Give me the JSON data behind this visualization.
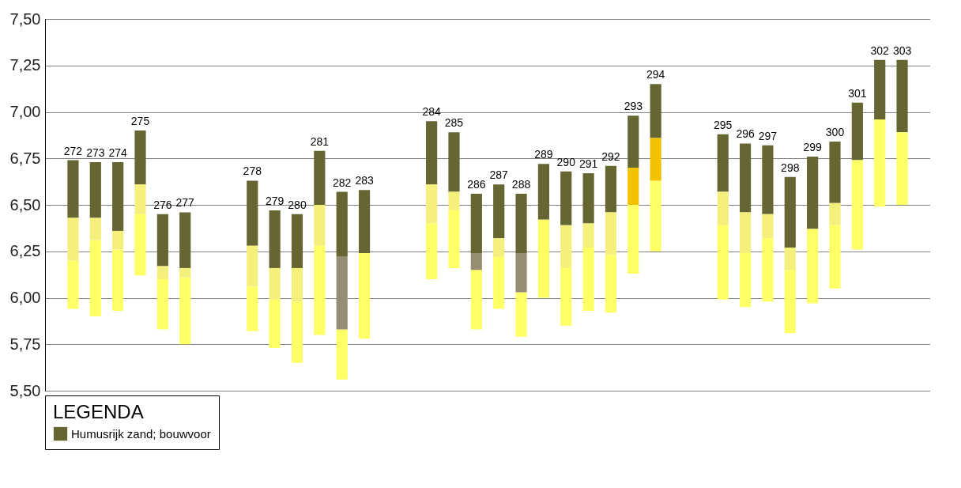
{
  "chart_data": {
    "type": "bar",
    "categories": [
      "272",
      "273",
      "274",
      "275",
      "276",
      "277",
      null,
      null,
      "278",
      "279",
      "280",
      "281",
      "282",
      "283",
      null,
      null,
      "284",
      "285",
      "286",
      "287",
      "288",
      "289",
      "290",
      "291",
      "292",
      "293",
      "294",
      null,
      null,
      "295",
      "296",
      "297",
      "298",
      "299",
      "300",
      "301",
      "302",
      "303"
    ],
    "series": [
      {
        "color": "#ffff66",
        "base": [
          5.94,
          5.9,
          5.93,
          6.12,
          5.83,
          5.75,
          null,
          null,
          5.82,
          5.73,
          5.65,
          5.8,
          5.56,
          5.78,
          null,
          null,
          6.1,
          6.16,
          5.83,
          5.94,
          5.79,
          6.0,
          5.85,
          5.93,
          5.92,
          6.13,
          6.25,
          null,
          null,
          5.99,
          5.95,
          5.98,
          5.81,
          5.97,
          6.05,
          6.26,
          6.49,
          6.5
        ],
        "values": [
          0.26,
          0.41,
          0.33,
          0.33,
          0.27,
          0.36,
          null,
          null,
          0.24,
          0.26,
          0.33,
          0.48,
          0.27,
          0.46,
          null,
          null,
          0.3,
          0.31,
          0.32,
          0.28,
          0.24,
          0.42,
          0.31,
          0.34,
          0.31,
          0.37,
          0.38,
          null,
          null,
          0.4,
          0.29,
          0.34,
          0.34,
          0.4,
          0.34,
          0.48,
          0.47,
          0.39
        ]
      },
      {
        "color": "#f5ef7c",
        "colors": [
          "#f5ef7c",
          "#f5ef7c",
          "#f5ef7c",
          "#f5ef7c",
          "#f5ef7c",
          "#f5ef7c",
          null,
          null,
          "#f5ef7c",
          "#f5ef7c",
          "#f5ef7c",
          "#f5ef7c",
          "#958e75",
          null,
          null,
          null,
          "#f5ef7c",
          "#f5ef7c",
          "#958e75",
          "#f5ef7c",
          "#958e75",
          null,
          "#f5ef7c",
          "#f5ef7c",
          "#f5ef7c",
          "#f2c200",
          "#f2c200",
          null,
          null,
          "#f5ef7c",
          "#f5ef7c",
          "#f5ef7c",
          "#f5ef7c",
          null,
          "#f5ef7c",
          null,
          null,
          null
        ],
        "base": [
          6.2,
          6.31,
          6.26,
          6.45,
          6.1,
          6.11,
          null,
          null,
          6.06,
          5.99,
          5.98,
          6.28,
          5.83,
          null,
          null,
          null,
          6.4,
          6.47,
          6.15,
          6.22,
          6.03,
          null,
          6.16,
          6.27,
          6.23,
          6.5,
          6.63,
          null,
          null,
          6.39,
          6.24,
          6.32,
          6.15,
          null,
          6.39,
          null,
          null,
          null
        ],
        "values": [
          0.23,
          0.12,
          0.1,
          0.16,
          0.07,
          0.05,
          null,
          null,
          0.22,
          0.17,
          0.18,
          0.22,
          0.39,
          null,
          null,
          null,
          0.21,
          0.1,
          0.09,
          0.1,
          0.21,
          null,
          0.23,
          0.13,
          0.23,
          0.2,
          0.23,
          null,
          null,
          0.18,
          0.22,
          0.13,
          0.12,
          null,
          0.12,
          null,
          null,
          null
        ]
      },
      {
        "name": "Humusrijk zand; bouwvoor",
        "color": "#666633",
        "base": [
          6.43,
          6.43,
          6.36,
          6.61,
          6.17,
          6.16,
          null,
          null,
          6.28,
          6.16,
          6.16,
          6.5,
          6.22,
          6.24,
          null,
          null,
          6.61,
          6.57,
          6.24,
          6.32,
          6.24,
          6.42,
          6.39,
          6.4,
          6.46,
          6.7,
          6.86,
          null,
          null,
          6.57,
          6.46,
          6.45,
          6.27,
          6.37,
          6.51,
          6.74,
          6.96,
          6.89
        ],
        "values": [
          0.31,
          0.3,
          0.37,
          0.29,
          0.28,
          0.3,
          null,
          null,
          0.35,
          0.31,
          0.29,
          0.29,
          0.35,
          0.34,
          null,
          null,
          0.34,
          0.32,
          0.32,
          0.29,
          0.32,
          0.3,
          0.29,
          0.27,
          0.25,
          0.28,
          0.29,
          null,
          null,
          0.31,
          0.37,
          0.37,
          0.38,
          0.39,
          0.33,
          0.31,
          0.32,
          0.39
        ]
      }
    ],
    "ylim": [
      5.5,
      7.5
    ],
    "yticks": [
      {
        "value": 5.5,
        "label": "5,50"
      },
      {
        "value": 5.75,
        "label": "5,75"
      },
      {
        "value": 6,
        "label": "6,00"
      },
      {
        "value": 6.25,
        "label": "6,25"
      },
      {
        "value": 6.5,
        "label": "6,50"
      },
      {
        "value": 6.75,
        "label": "6,75"
      },
      {
        "value": 7,
        "label": "7,00"
      },
      {
        "value": 7.25,
        "label": "7,25"
      },
      {
        "value": 7.5,
        "label": "7,50"
      }
    ],
    "grid": "y",
    "legend": "bottom",
    "legend_title": "LEGENDA"
  }
}
